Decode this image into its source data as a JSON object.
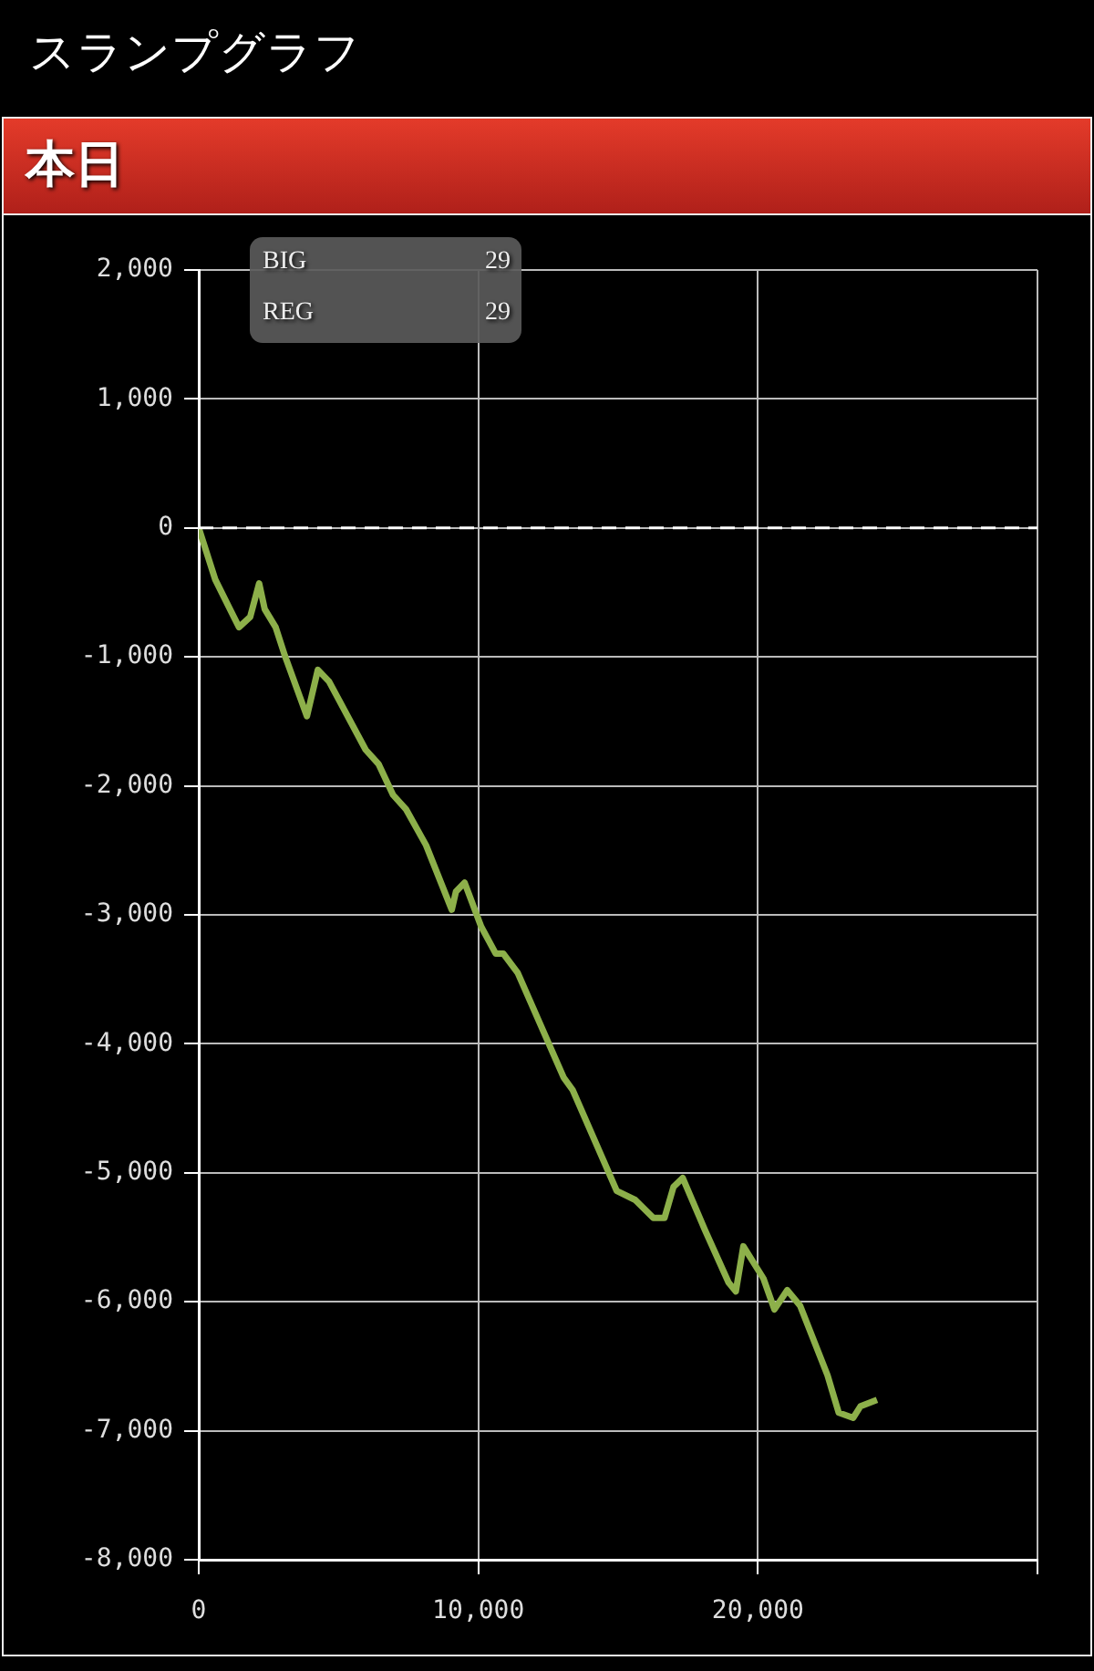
{
  "chart_data": {
    "type": "line",
    "title": "スランプグラフ",
    "subtitle": "本日",
    "annotations": [
      "BIG 29",
      "REG 29"
    ],
    "x": [
      0,
      590,
      1440,
      1840,
      2160,
      2360,
      2750,
      3080,
      3870,
      4260,
      4660,
      5970,
      6430,
      6950,
      7410,
      8130,
      9050,
      9200,
      9510,
      10100,
      10620,
      10890,
      11410,
      13050,
      13380,
      14950,
      15610,
      16260,
      16660,
      16980,
      17310,
      18100,
      18950,
      19210,
      19480,
      20200,
      20590,
      21050,
      21510,
      22490,
      22890,
      23410,
      23670,
      24260
    ],
    "series": [
      {
        "color": "#8db04a",
        "values": [
          0,
          -400,
          -770,
          -690,
          -430,
          -630,
          -770,
          -990,
          -1460,
          -1100,
          -1190,
          -1720,
          -1830,
          -2070,
          -2180,
          -2460,
          -2960,
          -2820,
          -2750,
          -3090,
          -3300,
          -3300,
          -3450,
          -4260,
          -4360,
          -5140,
          -5210,
          -5350,
          -5350,
          -5110,
          -5040,
          -5440,
          -5850,
          -5920,
          -5570,
          -5820,
          -6060,
          -5910,
          -6030,
          -6570,
          -6860,
          -6900,
          -6810,
          -6760
        ]
      }
    ],
    "xlim": [
      0,
      30000
    ],
    "xticks": [
      0,
      {
        "value": 10000,
        "label": "10,000"
      },
      {
        "value": 20000,
        "label": "20,000"
      },
      {
        "value": 30000,
        "label": null
      }
    ],
    "ylim": [
      -8000,
      2000
    ],
    "yticks": [
      {
        "value": -8000,
        "label": "-8,000"
      },
      {
        "value": -7000,
        "label": "-7,000"
      },
      {
        "value": -6000,
        "label": "-6,000"
      },
      {
        "value": -5000,
        "label": "-5,000"
      },
      {
        "value": -4000,
        "label": "-4,000"
      },
      {
        "value": -3000,
        "label": "-3,000"
      },
      {
        "value": -2000,
        "label": "-2,000"
      },
      {
        "value": -1000,
        "label": "-1,000"
      },
      0,
      {
        "value": 1000,
        "label": "1,000"
      },
      {
        "value": 2000,
        "label": "2,000"
      }
    ],
    "ref_lines": [
      {
        "axis": "y",
        "value": 0,
        "color": "#ffffff",
        "line_style": "dashed"
      }
    ],
    "grid": true,
    "legend": false,
    "marker": "none",
    "line_style": "solid"
  }
}
